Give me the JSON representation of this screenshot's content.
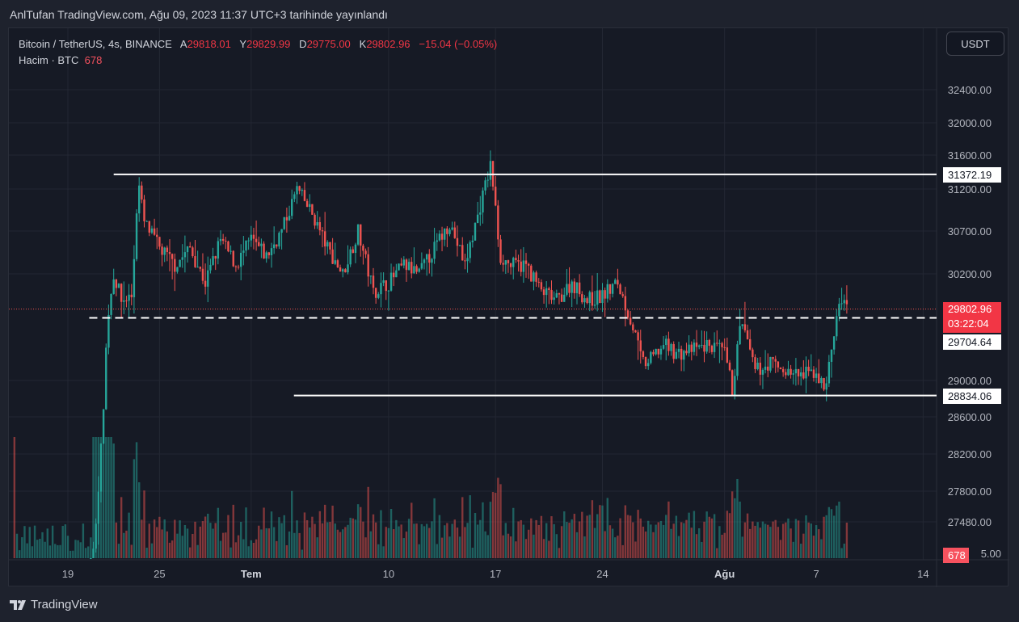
{
  "header": {
    "published": "AnlTufan TradingView.com, Ağu 09, 2023 11:37 UTC+3 tarihinde yayınlandı"
  },
  "legend": {
    "symbol": "Bitcoin / TetherUS, 4s, BINANCE",
    "o_label": "A",
    "o": "29818.01",
    "h_label": "Y",
    "h": "29829.99",
    "l_label": "D",
    "l": "29775.00",
    "c_label": "K",
    "c": "29802.96",
    "change": "−15.04 (−0.05%)",
    "volume_label": "Hacim · BTC",
    "volume": "678"
  },
  "currency_button": "USDT",
  "brand": "TradingView",
  "colors": {
    "up": "#26a69a",
    "down": "#ef5350",
    "bg": "#161a25"
  },
  "chart_data": {
    "type": "candlestick",
    "title": "Bitcoin / TetherUS, 4s, BINANCE",
    "y_ticks": [
      "32400.00",
      "32000.00",
      "31600.00",
      "31200.00",
      "30700.00",
      "30200.00",
      "29000.00",
      "28600.00",
      "28200.00",
      "27800.00",
      "27480.00"
    ],
    "y_tick_values": [
      32400,
      32000,
      31600,
      31200,
      30700,
      30200,
      29000,
      28600,
      28200,
      27800,
      27480
    ],
    "x_ticks": [
      "19",
      "25",
      "Tem",
      "10",
      "17",
      "24",
      "Ağu",
      "7",
      "14"
    ],
    "x_tick_days": [
      0,
      6,
      12,
      21,
      28,
      35,
      43,
      49,
      56
    ],
    "x_unit": "days since Jun 19 2023",
    "price_path": [
      [
        1.5,
        26800
      ],
      [
        2.2,
        28300
      ],
      [
        2.6,
        29700
      ],
      [
        3,
        30200
      ],
      [
        3.5,
        29900
      ],
      [
        4.2,
        29950
      ],
      [
        4.6,
        31300
      ],
      [
        5,
        30800
      ],
      [
        6,
        30500
      ],
      [
        7,
        30300
      ],
      [
        8,
        30500
      ],
      [
        9,
        30100
      ],
      [
        10,
        30600
      ],
      [
        11,
        30300
      ],
      [
        12,
        30600
      ],
      [
        13,
        30400
      ],
      [
        14,
        30700
      ],
      [
        15,
        31200
      ],
      [
        16,
        30900
      ],
      [
        17,
        30500
      ],
      [
        18,
        30200
      ],
      [
        19,
        30700
      ],
      [
        20,
        30000
      ],
      [
        21,
        30100
      ],
      [
        22,
        30300
      ],
      [
        23,
        30200
      ],
      [
        24,
        30500
      ],
      [
        25,
        30800
      ],
      [
        26,
        30300
      ],
      [
        27,
        31000
      ],
      [
        27.7,
        31500
      ],
      [
        28.3,
        30400
      ],
      [
        29,
        30300
      ],
      [
        30,
        30300
      ],
      [
        31,
        30000
      ],
      [
        32,
        29900
      ],
      [
        33,
        30100
      ],
      [
        34,
        29900
      ],
      [
        35,
        29950
      ],
      [
        36,
        30100
      ],
      [
        37,
        29600
      ],
      [
        37.6,
        29200
      ],
      [
        38,
        29200
      ],
      [
        39,
        29400
      ],
      [
        40,
        29300
      ],
      [
        41,
        29350
      ],
      [
        42,
        29400
      ],
      [
        43,
        29300
      ],
      [
        43.5,
        28900
      ],
      [
        44.1,
        29700
      ],
      [
        44.5,
        29400
      ],
      [
        45,
        29100
      ],
      [
        46,
        29200
      ],
      [
        47,
        29100
      ],
      [
        48,
        29050
      ],
      [
        49,
        29100
      ],
      [
        49.5,
        28900
      ],
      [
        50,
        29300
      ],
      [
        50.5,
        29900
      ],
      [
        51,
        29802.96
      ]
    ],
    "horizontal_lines": [
      {
        "price": 31372.19,
        "label": "31372.19",
        "style": "solid",
        "from_day": 3.0
      },
      {
        "price": 29704.64,
        "label": "29704.64",
        "style": "dashed",
        "from_day": 1.4
      },
      {
        "price": 28834.06,
        "label": "28834.06",
        "style": "solid",
        "from_day": 14.8
      }
    ],
    "last_price": {
      "label": "29802.96",
      "countdown": "03:22:04"
    },
    "last_volume": "678",
    "volume_axis_partial": "5.00"
  }
}
